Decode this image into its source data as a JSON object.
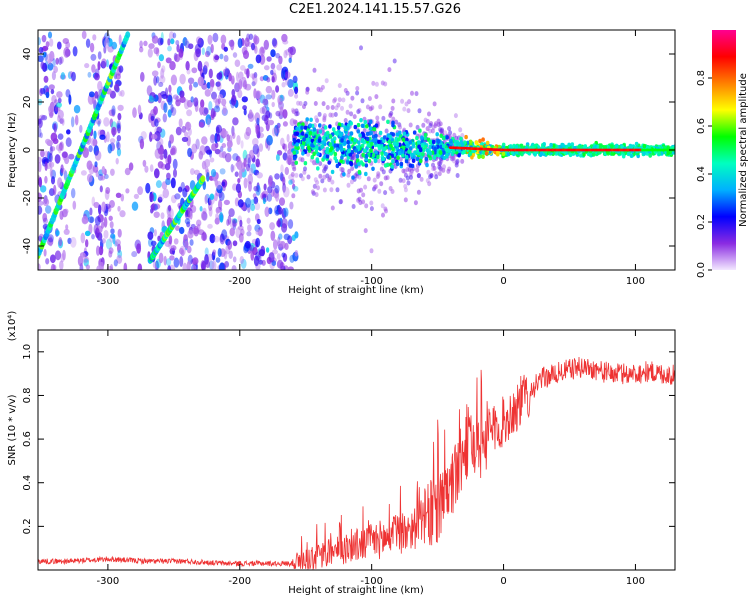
{
  "title": "C2E1.2024.141.15.57.G26",
  "chart_data": [
    {
      "type": "heatmap",
      "xlabel": "Height of straight line (km)",
      "ylabel": "Frequency (Hz)",
      "xlim": [
        -353,
        130
      ],
      "ylim": [
        -50,
        50
      ],
      "xticks": [
        -300,
        -200,
        -100,
        0,
        100
      ],
      "yticks": [
        -40,
        -20,
        0,
        20,
        40
      ],
      "colorbar": {
        "label": "Normalized spectral amplitude",
        "range": [
          0,
          1
        ],
        "ticks": [
          "0.0",
          "0.2",
          "0.4",
          "0.6",
          "0.8"
        ],
        "colors": [
          "#f3e8ff",
          "#8a2be2",
          "#0000ff",
          "#00b0ff",
          "#00ffc0",
          "#00ff00",
          "#ffff00",
          "#ff8000",
          "#ff0000",
          "#ff0090"
        ]
      },
      "features": {
        "diagonal_lines": [
          {
            "x_start": -353,
            "y_start": -44,
            "x_end": -285,
            "y_end": 48
          },
          {
            "x_start": -268,
            "y_start": -46,
            "x_end": -228,
            "y_end": -12
          }
        ],
        "scatter_region": {
          "x_from": -353,
          "x_to": -157,
          "y_from": -50,
          "y_to": 48
        },
        "band": [
          {
            "x": -160,
            "y": 4,
            "half_width": 8
          },
          {
            "x": -100,
            "y": 1,
            "half_width": 10
          },
          {
            "x": -40,
            "y": 1,
            "half_width": 4
          },
          {
            "x": 0,
            "y": 0,
            "half_width": 2
          },
          {
            "x": 130,
            "y": 0,
            "half_width": 2
          }
        ]
      }
    },
    {
      "type": "line",
      "xlabel": "Height of straight line (km)",
      "ylabel": "SNR (10 * v/v)",
      "y_multiplier": "(x10⁴)",
      "xlim": [
        -353,
        130
      ],
      "ylim": [
        0,
        1.1
      ],
      "xticks": [
        -300,
        -200,
        -100,
        0,
        100
      ],
      "yticks": [
        "0.2",
        "0.4",
        "0.6",
        "0.8",
        "1.0"
      ],
      "color": "#ee3333",
      "series": [
        {
          "x": [
            -353,
            -330,
            -300,
            -270,
            -240,
            -210,
            -180,
            -160,
            -140,
            -120,
            -100,
            -80,
            -60,
            -45,
            -35,
            -25,
            -20,
            -15,
            -10,
            0,
            10,
            20,
            30,
            40,
            50,
            60,
            70,
            80,
            90,
            100,
            110,
            120,
            130
          ],
          "y": [
            0.04,
            0.04,
            0.05,
            0.04,
            0.04,
            0.03,
            0.03,
            0.03,
            0.06,
            0.1,
            0.13,
            0.16,
            0.22,
            0.3,
            0.45,
            0.62,
            0.52,
            0.6,
            0.63,
            0.68,
            0.75,
            0.82,
            0.88,
            0.9,
            0.92,
            0.93,
            0.92,
            0.9,
            0.9,
            0.9,
            0.91,
            0.9,
            0.89
          ]
        }
      ]
    }
  ]
}
